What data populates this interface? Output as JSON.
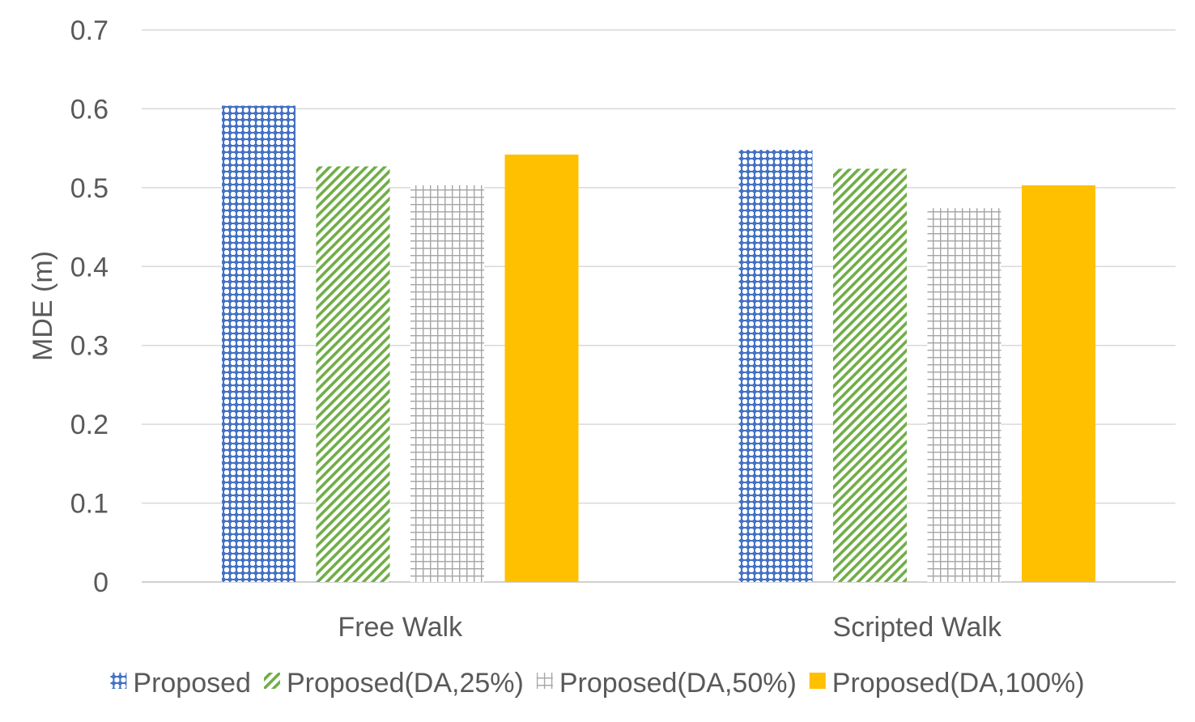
{
  "chart_data": {
    "type": "bar",
    "title": "",
    "xlabel": "",
    "ylabel": "MDE (m)",
    "ylim": [
      0,
      0.7
    ],
    "yticks": [
      0,
      0.1,
      0.2,
      0.3,
      0.4,
      0.5,
      0.6,
      0.7
    ],
    "ytick_labels": [
      "0",
      "0.1",
      "0.2",
      "0.3",
      "0.4",
      "0.5",
      "0.6",
      "0.7"
    ],
    "grid": true,
    "legend_position": "bottom",
    "categories": [
      "Free Walk",
      "Scripted Walk"
    ],
    "series": [
      {
        "name": "Proposed",
        "values": [
          0.604,
          0.548
        ],
        "color": "#4472C4",
        "pattern": "dots"
      },
      {
        "name": "Proposed(DA,25%)",
        "values": [
          0.527,
          0.524
        ],
        "color": "#70AD47",
        "pattern": "diagonal"
      },
      {
        "name": "Proposed(DA,50%)",
        "values": [
          0.503,
          0.474
        ],
        "color": "#A5A5A5",
        "pattern": "grid"
      },
      {
        "name": "Proposed(DA,100%)",
        "values": [
          0.542,
          0.503
        ],
        "color": "#FFC000",
        "pattern": "solid"
      }
    ]
  }
}
